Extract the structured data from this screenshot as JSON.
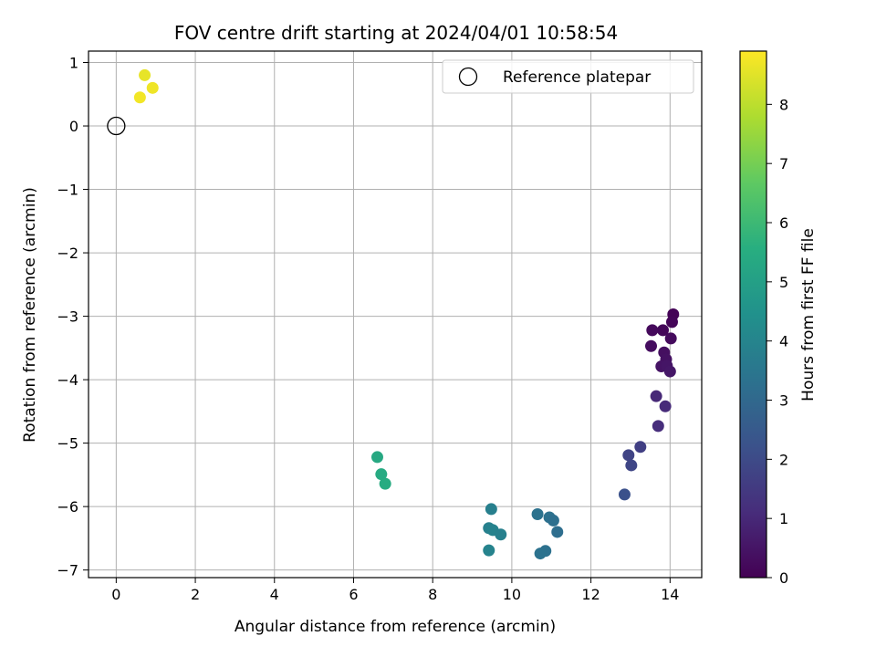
{
  "chart_data": {
    "type": "scatter",
    "title": "FOV centre drift starting at 2024/04/01 10:58:54",
    "xlabel": "Angular distance from reference (arcmin)",
    "ylabel": "Rotation from reference (arcmin)",
    "xlim": [
      -0.7,
      14.8
    ],
    "ylim": [
      -7.12,
      1.18
    ],
    "xticks": [
      0,
      2,
      4,
      6,
      8,
      10,
      12,
      14
    ],
    "yticks": [
      1,
      0,
      -1,
      -2,
      -3,
      -4,
      -5,
      -6,
      -7
    ],
    "xtick_labels": [
      "0",
      "2",
      "4",
      "6",
      "8",
      "10",
      "12",
      "14"
    ],
    "ytick_labels": [
      "1",
      "0",
      "−1",
      "−2",
      "−3",
      "−4",
      "−5",
      "−6",
      "−7"
    ],
    "grid": true,
    "legend": {
      "placement": "top-right",
      "entries": [
        "Reference platepar"
      ]
    },
    "reference_point": {
      "x": 0,
      "y": 0
    },
    "colorbar": {
      "label": "Hours from first FF file",
      "range": [
        0,
        8.9
      ],
      "ticks": [
        0,
        1,
        2,
        3,
        4,
        5,
        6,
        7,
        8
      ],
      "tick_labels": [
        "0",
        "1",
        "2",
        "3",
        "4",
        "5",
        "6",
        "7",
        "8"
      ],
      "colormap": "viridis"
    },
    "points": [
      {
        "x": 14.08,
        "y": -2.97,
        "hours": 0.05
      },
      {
        "x": 14.05,
        "y": -3.09,
        "hours": 0.1
      },
      {
        "x": 13.82,
        "y": -3.22,
        "hours": 0.15
      },
      {
        "x": 13.55,
        "y": -3.22,
        "hours": 0.2
      },
      {
        "x": 14.02,
        "y": -3.35,
        "hours": 0.25
      },
      {
        "x": 13.52,
        "y": -3.47,
        "hours": 0.3
      },
      {
        "x": 13.85,
        "y": -3.57,
        "hours": 0.35
      },
      {
        "x": 13.9,
        "y": -3.68,
        "hours": 0.4
      },
      {
        "x": 13.78,
        "y": -3.79,
        "hours": 0.45
      },
      {
        "x": 13.92,
        "y": -3.78,
        "hours": 0.5
      },
      {
        "x": 14.0,
        "y": -3.87,
        "hours": 0.55
      },
      {
        "x": 13.65,
        "y": -4.26,
        "hours": 1.0
      },
      {
        "x": 13.88,
        "y": -4.42,
        "hours": 1.05
      },
      {
        "x": 13.7,
        "y": -4.73,
        "hours": 1.15
      },
      {
        "x": 13.25,
        "y": -5.06,
        "hours": 1.65
      },
      {
        "x": 12.95,
        "y": -5.19,
        "hours": 1.8
      },
      {
        "x": 13.02,
        "y": -5.35,
        "hours": 1.85
      },
      {
        "x": 12.85,
        "y": -5.81,
        "hours": 2.2
      },
      {
        "x": 10.65,
        "y": -6.12,
        "hours": 3.35
      },
      {
        "x": 10.95,
        "y": -6.17,
        "hours": 3.3
      },
      {
        "x": 11.05,
        "y": -6.22,
        "hours": 3.25
      },
      {
        "x": 11.15,
        "y": -6.4,
        "hours": 3.2
      },
      {
        "x": 10.85,
        "y": -6.7,
        "hours": 3.3
      },
      {
        "x": 10.72,
        "y": -6.74,
        "hours": 3.35
      },
      {
        "x": 9.48,
        "y": -6.04,
        "hours": 3.8
      },
      {
        "x": 9.42,
        "y": -6.34,
        "hours": 3.85
      },
      {
        "x": 9.52,
        "y": -6.37,
        "hours": 3.9
      },
      {
        "x": 9.72,
        "y": -6.44,
        "hours": 3.85
      },
      {
        "x": 9.42,
        "y": -6.69,
        "hours": 3.95
      },
      {
        "x": 6.6,
        "y": -5.22,
        "hours": 5.35
      },
      {
        "x": 6.7,
        "y": -5.49,
        "hours": 5.4
      },
      {
        "x": 6.8,
        "y": -5.64,
        "hours": 5.45
      },
      {
        "x": 0.72,
        "y": 0.8,
        "hours": 8.6
      },
      {
        "x": 0.92,
        "y": 0.6,
        "hours": 8.7
      },
      {
        "x": 0.6,
        "y": 0.45,
        "hours": 8.75
      }
    ]
  }
}
